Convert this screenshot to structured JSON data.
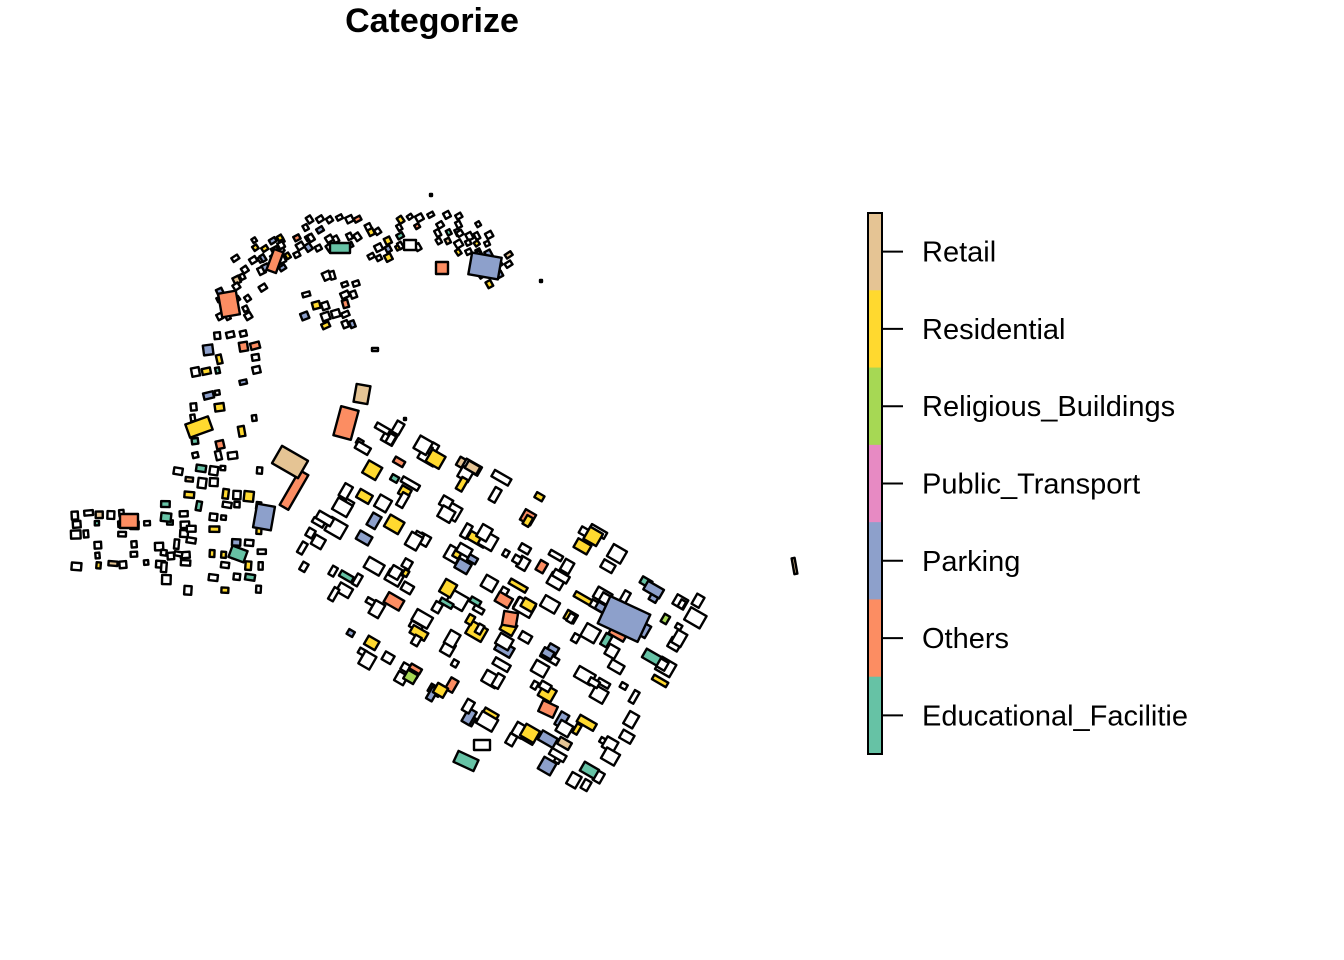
{
  "title": "Categorize",
  "legend": {
    "items": [
      {
        "label": "Retail",
        "color": "#E5C494"
      },
      {
        "label": "Residential",
        "color": "#FFD92F"
      },
      {
        "label": "Religious_Buildings",
        "color": "#A6D854"
      },
      {
        "label": "Public_Transport",
        "color": "#E78AC3"
      },
      {
        "label": "Parking",
        "color": "#8DA0CB"
      },
      {
        "label": "Others",
        "color": "#FC8D62"
      },
      {
        "label": "Educational_Facilitie",
        "color": "#66C2A5"
      }
    ]
  },
  "map": {
    "unclassified_color": "#FFFFFF",
    "outline_color": "#000000"
  }
}
